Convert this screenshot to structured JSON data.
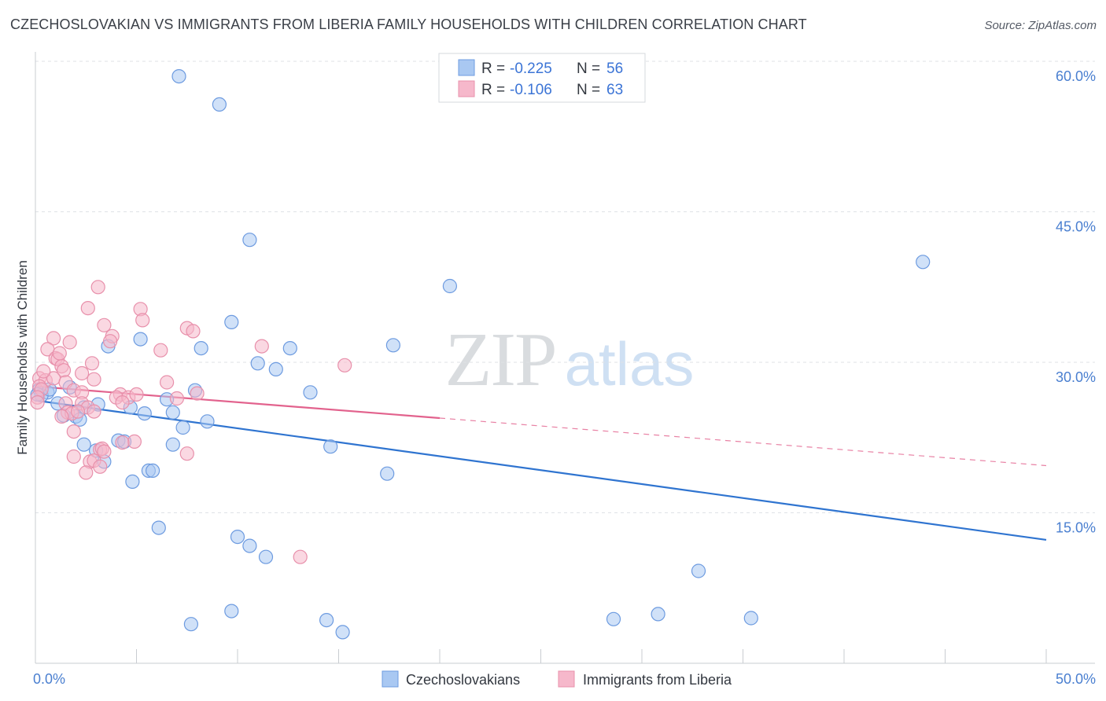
{
  "title": "CZECHOSLOVAKIAN VS IMMIGRANTS FROM LIBERIA FAMILY HOUSEHOLDS WITH CHILDREN CORRELATION CHART",
  "source": "Source: ZipAtlas.com",
  "watermark": {
    "zip": "ZIP",
    "atlas": "atlas"
  },
  "legend_box": {
    "rows": [
      {
        "r_label": "R = ",
        "r_value": "-0.225",
        "n_label": "N = ",
        "n_value": "56",
        "color": "#a9c8f2"
      },
      {
        "r_label": "R = ",
        "r_value": "-0.106",
        "n_label": "N = ",
        "n_value": "63",
        "color": "#f6b8cb"
      }
    ]
  },
  "chart_data": {
    "type": "scatter",
    "title": "CZECHOSLOVAKIAN VS IMMIGRANTS FROM LIBERIA FAMILY HOUSEHOLDS WITH CHILDREN CORRELATION CHART",
    "xlabel": "",
    "ylabel": "Family Households with Children",
    "xlim": [
      0,
      50
    ],
    "ylim": [
      0,
      60
    ],
    "x_tick_labels": [
      "0.0%",
      "50.0%"
    ],
    "y_ticks": [
      15,
      30,
      45,
      60
    ],
    "y_tick_labels": [
      "15.0%",
      "30.0%",
      "45.0%",
      "60.0%"
    ],
    "grid": true,
    "legend_position": "bottom",
    "series": [
      {
        "name": "Czechoslovakians",
        "color": "#a9c8f2",
        "stroke": "#6d9be0",
        "trend_color": "#2f74d0",
        "trend": {
          "x0": 0,
          "y0": 26.2,
          "x1": 50,
          "y1": 12.3,
          "dash_from": null
        },
        "points": [
          [
            7.1,
            58.5
          ],
          [
            9.1,
            55.7
          ],
          [
            10.6,
            42.2
          ],
          [
            43.9,
            40.0
          ],
          [
            20.5,
            37.6
          ],
          [
            9.7,
            34.0
          ],
          [
            3.6,
            31.6
          ],
          [
            5.2,
            32.3
          ],
          [
            8.2,
            31.4
          ],
          [
            17.7,
            31.7
          ],
          [
            12.6,
            31.4
          ],
          [
            11.0,
            29.9
          ],
          [
            11.9,
            29.3
          ],
          [
            0.2,
            27.3
          ],
          [
            0.6,
            27.0
          ],
          [
            0.3,
            26.7
          ],
          [
            1.7,
            27.5
          ],
          [
            7.9,
            27.2
          ],
          [
            13.6,
            27.0
          ],
          [
            1.1,
            25.9
          ],
          [
            2.4,
            25.5
          ],
          [
            3.1,
            25.8
          ],
          [
            4.7,
            25.5
          ],
          [
            6.5,
            26.3
          ],
          [
            5.4,
            24.9
          ],
          [
            6.8,
            25.0
          ],
          [
            1.4,
            24.7
          ],
          [
            2.0,
            24.6
          ],
          [
            2.2,
            24.3
          ],
          [
            8.5,
            24.1
          ],
          [
            7.3,
            23.5
          ],
          [
            4.1,
            22.2
          ],
          [
            4.4,
            22.1
          ],
          [
            2.4,
            21.8
          ],
          [
            3.0,
            21.2
          ],
          [
            6.8,
            21.8
          ],
          [
            14.6,
            21.6
          ],
          [
            3.4,
            20.1
          ],
          [
            5.6,
            19.2
          ],
          [
            5.8,
            19.2
          ],
          [
            17.4,
            18.9
          ],
          [
            4.8,
            18.1
          ],
          [
            6.1,
            13.5
          ],
          [
            10.0,
            12.6
          ],
          [
            10.6,
            11.7
          ],
          [
            11.4,
            10.6
          ],
          [
            32.8,
            9.2
          ],
          [
            7.7,
            3.9
          ],
          [
            9.7,
            5.2
          ],
          [
            14.4,
            4.3
          ],
          [
            15.2,
            3.1
          ],
          [
            28.6,
            4.4
          ],
          [
            30.8,
            4.9
          ],
          [
            35.4,
            4.5
          ],
          [
            0.1,
            26.8
          ],
          [
            0.7,
            27.3
          ]
        ]
      },
      {
        "name": "Immigrants from Liberia",
        "color": "#f6b8cb",
        "stroke": "#e890ab",
        "trend_color": "#e2628d",
        "trend": {
          "x0": 0,
          "y0": 27.6,
          "x1": 50,
          "y1": 19.7,
          "dash_from": 20
        },
        "points": [
          [
            3.1,
            37.5
          ],
          [
            2.6,
            35.4
          ],
          [
            5.2,
            35.3
          ],
          [
            5.3,
            34.2
          ],
          [
            3.4,
            33.7
          ],
          [
            7.5,
            33.4
          ],
          [
            7.8,
            33.1
          ],
          [
            3.8,
            32.6
          ],
          [
            0.9,
            32.4
          ],
          [
            3.7,
            32.1
          ],
          [
            1.7,
            32.0
          ],
          [
            11.2,
            31.6
          ],
          [
            0.6,
            31.3
          ],
          [
            6.2,
            31.2
          ],
          [
            1.0,
            30.4
          ],
          [
            1.1,
            30.3
          ],
          [
            1.3,
            29.6
          ],
          [
            15.3,
            29.7
          ],
          [
            1.4,
            29.2
          ],
          [
            2.8,
            29.9
          ],
          [
            2.3,
            28.9
          ],
          [
            0.2,
            28.4
          ],
          [
            0.5,
            28.2
          ],
          [
            0.9,
            28.4
          ],
          [
            1.5,
            28.0
          ],
          [
            2.9,
            28.3
          ],
          [
            6.5,
            28.0
          ],
          [
            0.2,
            27.6
          ],
          [
            0.3,
            27.3
          ],
          [
            1.9,
            27.2
          ],
          [
            2.3,
            27.0
          ],
          [
            4.2,
            26.8
          ],
          [
            4.0,
            26.5
          ],
          [
            4.6,
            26.5
          ],
          [
            5.0,
            26.8
          ],
          [
            7.0,
            26.4
          ],
          [
            8.0,
            26.9
          ],
          [
            0.1,
            26.5
          ],
          [
            0.1,
            26.0
          ],
          [
            1.5,
            25.9
          ],
          [
            2.3,
            25.9
          ],
          [
            2.6,
            25.5
          ],
          [
            4.3,
            26.0
          ],
          [
            1.6,
            25.0
          ],
          [
            1.8,
            24.9
          ],
          [
            2.1,
            25.1
          ],
          [
            2.9,
            25.1
          ],
          [
            1.3,
            24.6
          ],
          [
            1.9,
            23.1
          ],
          [
            4.9,
            22.1
          ],
          [
            4.3,
            22.0
          ],
          [
            3.2,
            21.3
          ],
          [
            3.3,
            21.4
          ],
          [
            3.4,
            21.1
          ],
          [
            1.9,
            20.6
          ],
          [
            7.5,
            20.9
          ],
          [
            2.7,
            20.1
          ],
          [
            2.9,
            20.2
          ],
          [
            3.2,
            19.6
          ],
          [
            2.5,
            19.0
          ],
          [
            13.1,
            10.6
          ],
          [
            1.2,
            30.9
          ],
          [
            0.4,
            29.1
          ]
        ]
      }
    ]
  }
}
